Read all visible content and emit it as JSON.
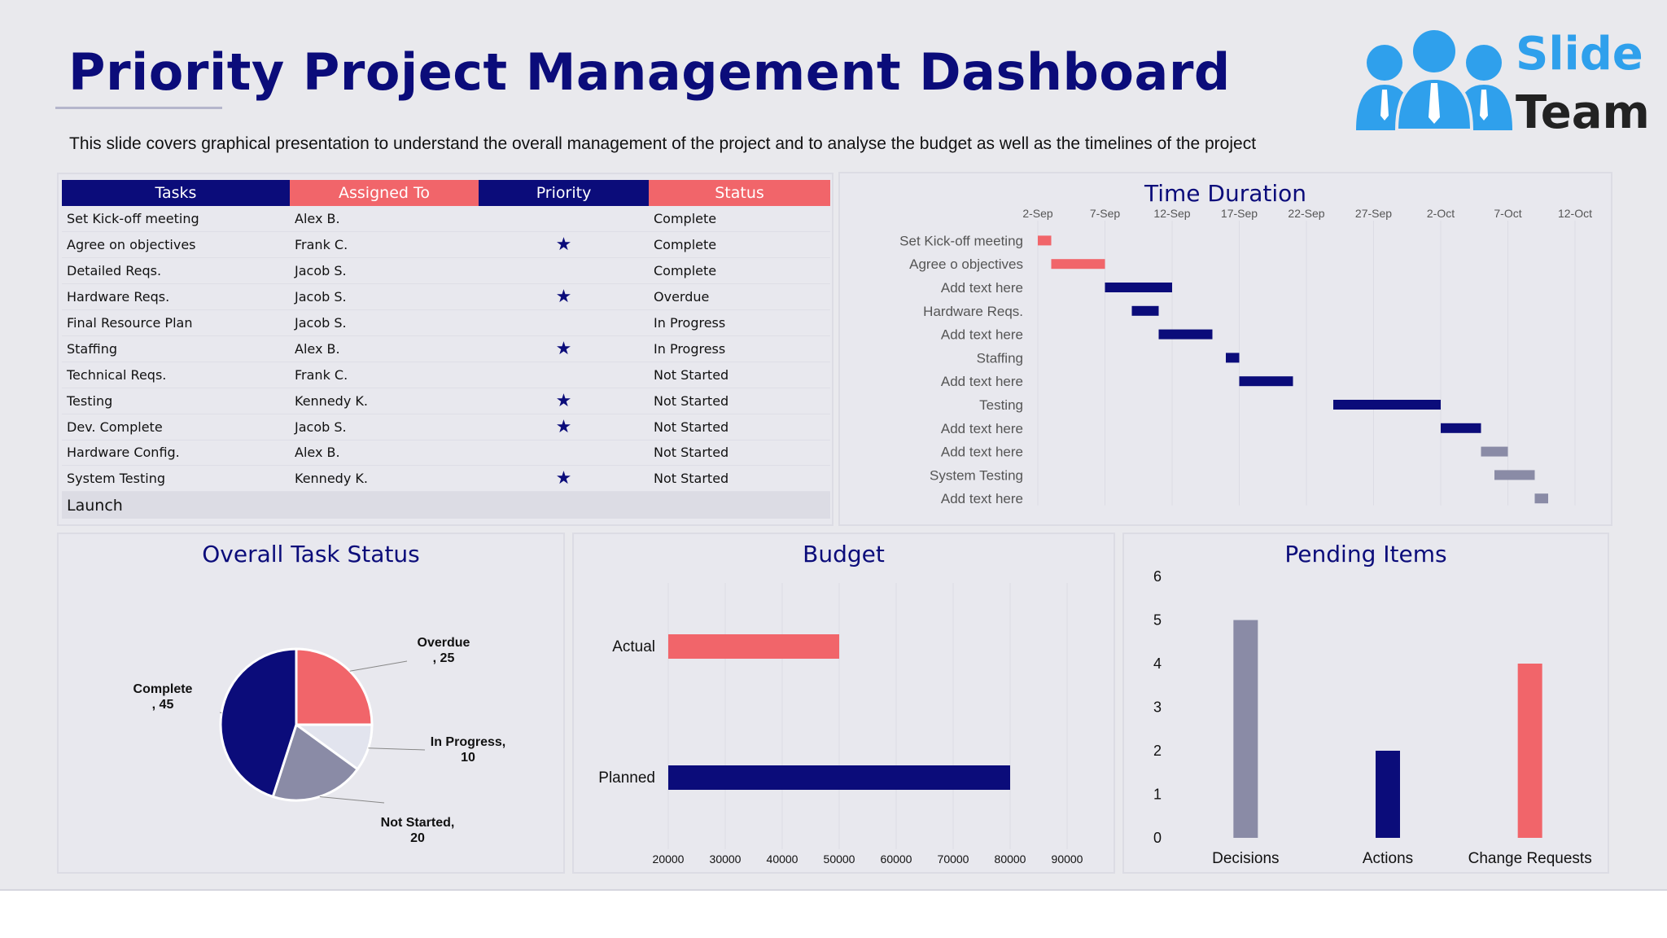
{
  "header": {
    "title": "Priority Project Management Dashboard",
    "subtitle": "This slide covers graphical presentation to understand the overall management of the project and to analyse the budget as well as the timelines of the project"
  },
  "logo": {
    "line1": "Slide",
    "line2": "Team",
    "icon": "team-people-icon"
  },
  "colors": {
    "navy": "#0b0c7a",
    "coral": "#f1656a",
    "gray": "#8a8ba6",
    "light": "#e2e4ee"
  },
  "task_table": {
    "headers": {
      "tasks": "Tasks",
      "assigned": "Assigned To",
      "priority": "Priority",
      "status": "Status"
    },
    "priority_symbol": "★",
    "rows": [
      {
        "task": "Set Kick-off meeting",
        "assigned": "Alex B.",
        "priority": "",
        "status": "Complete"
      },
      {
        "task": "Agree on objectives",
        "assigned": "Frank C.",
        "priority": "★",
        "status": "Complete"
      },
      {
        "task": "Detailed Reqs.",
        "assigned": "Jacob S.",
        "priority": "",
        "status": "Complete"
      },
      {
        "task": "Hardware Reqs.",
        "assigned": "Jacob S.",
        "priority": "★",
        "status": "Overdue"
      },
      {
        "task": "Final Resource Plan",
        "assigned": "Jacob S.",
        "priority": "",
        "status": "In Progress"
      },
      {
        "task": "Staffing",
        "assigned": "Alex B.",
        "priority": "★",
        "status": "In Progress"
      },
      {
        "task": "Technical Reqs.",
        "assigned": "Frank C.",
        "priority": "",
        "status": "Not Started"
      },
      {
        "task": "Testing",
        "assigned": "Kennedy K.",
        "priority": "★",
        "status": "Not Started"
      },
      {
        "task": "Dev. Complete",
        "assigned": "Jacob S.",
        "priority": "★",
        "status": "Not Started"
      },
      {
        "task": "Hardware Config.",
        "assigned": "Alex B.",
        "priority": "",
        "status": "Not Started"
      },
      {
        "task": "System Testing",
        "assigned": "Kennedy K.",
        "priority": "★",
        "status": "Not Started"
      }
    ],
    "footer": "Launch"
  },
  "chart_data": [
    {
      "type": "gantt",
      "title": "Time Duration",
      "x_ticks": [
        "2-Sep",
        "7-Sep",
        "12-Sep",
        "17-Sep",
        "22-Sep",
        "27-Sep",
        "2-Oct",
        "7-Oct",
        "12-Oct"
      ],
      "x_range_days": [
        0,
        40
      ],
      "tasks": [
        {
          "label": "Set Kick-off meeting",
          "start": 0,
          "duration": 1,
          "color": "#f1656a"
        },
        {
          "label": "Agree o objectives",
          "start": 1,
          "duration": 4,
          "color": "#f1656a"
        },
        {
          "label": "Add text here",
          "start": 5,
          "duration": 5,
          "color": "#0b0c7a"
        },
        {
          "label": "Hardware Reqs.",
          "start": 7,
          "duration": 2,
          "color": "#0b0c7a"
        },
        {
          "label": "Add text here",
          "start": 9,
          "duration": 4,
          "color": "#0b0c7a"
        },
        {
          "label": "Staffing",
          "start": 14,
          "duration": 1,
          "color": "#0b0c7a"
        },
        {
          "label": "Add text here",
          "start": 15,
          "duration": 4,
          "color": "#0b0c7a"
        },
        {
          "label": "Testing",
          "start": 22,
          "duration": 8,
          "color": "#0b0c7a"
        },
        {
          "label": "Add text here",
          "start": 30,
          "duration": 3,
          "color": "#0b0c7a"
        },
        {
          "label": "Add text here",
          "start": 33,
          "duration": 2,
          "color": "#8a8ba6"
        },
        {
          "label": "System Testing",
          "start": 34,
          "duration": 3,
          "color": "#8a8ba6"
        },
        {
          "label": "Add text here",
          "start": 37,
          "duration": 1,
          "color": "#8a8ba6"
        }
      ]
    },
    {
      "type": "pie",
      "title": "Overall Task Status",
      "slices": [
        {
          "name": "Overdue",
          "value": 25,
          "label_lines": [
            "Overdue",
            ", 25"
          ],
          "color": "#f1656a"
        },
        {
          "name": "In Progress",
          "value": 10,
          "label_lines": [
            "In Progress,",
            "10"
          ],
          "color": "#e2e4ee"
        },
        {
          "name": "Not Started",
          "value": 20,
          "label_lines": [
            "Not Started,",
            "20"
          ],
          "color": "#8a8ba6"
        },
        {
          "name": "Complete",
          "value": 45,
          "label_lines": [
            "Complete",
            ", 45"
          ],
          "color": "#0b0c7a"
        }
      ]
    },
    {
      "type": "bar",
      "orientation": "horizontal",
      "title": "Budget",
      "categories": [
        "Actual",
        "Planned"
      ],
      "values": [
        50000,
        80000
      ],
      "colors": [
        "#f1656a",
        "#0b0c7a"
      ],
      "xlim": [
        20000,
        90000
      ],
      "x_ticks": [
        20000,
        30000,
        40000,
        50000,
        60000,
        70000,
        80000,
        90000
      ]
    },
    {
      "type": "bar",
      "title": "Pending Items",
      "categories": [
        "Decisions",
        "Actions",
        "Change Requests"
      ],
      "values": [
        5,
        2,
        4
      ],
      "colors": [
        "#8a8ba6",
        "#0b0c7a",
        "#f1656a"
      ],
      "ylim": [
        0,
        6
      ],
      "y_ticks": [
        0,
        1,
        2,
        3,
        4,
        5,
        6
      ]
    }
  ]
}
